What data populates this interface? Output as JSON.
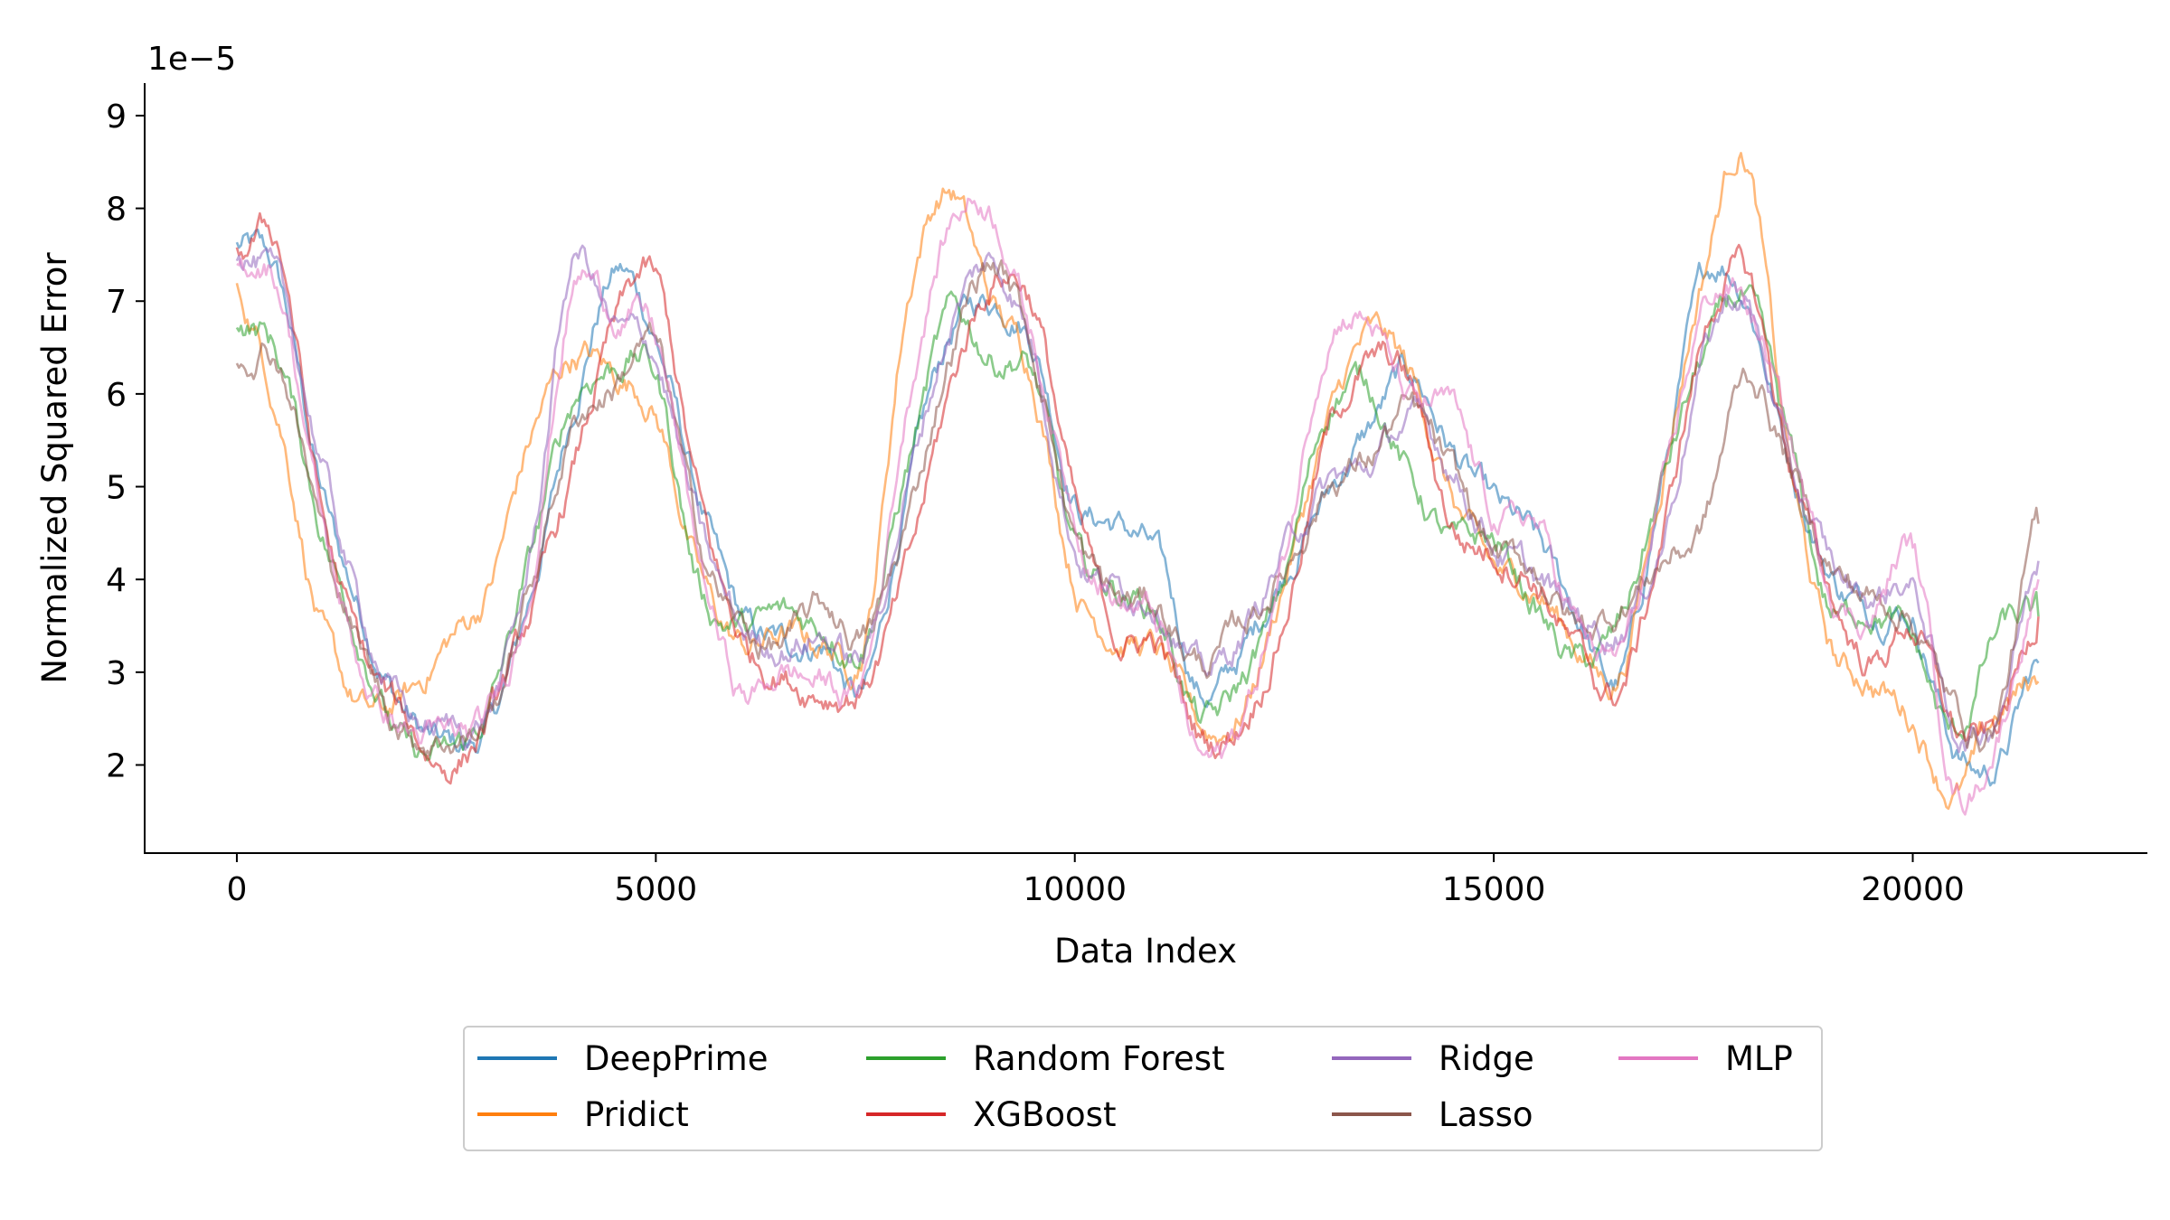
{
  "chart_data": {
    "type": "line",
    "xlabel": "Data Index",
    "ylabel": "Normalized Squared Error",
    "y_scale_label": "1e−5",
    "xlim": [
      -1100,
      22800
    ],
    "ylim": [
      1.05,
      9.35
    ],
    "x_ticks": [
      0,
      5000,
      10000,
      15000,
      20000
    ],
    "x_tick_labels": [
      "0",
      "5000",
      "10000",
      "15000",
      "20000"
    ],
    "y_ticks": [
      2,
      3,
      4,
      5,
      6,
      7,
      8,
      9
    ],
    "y_tick_labels": [
      "2",
      "3",
      "4",
      "5",
      "6",
      "7",
      "8",
      "9"
    ],
    "grid": false,
    "legend_position": "bottom-center",
    "x": [
      0,
      500,
      1000,
      1500,
      2000,
      2500,
      3000,
      3500,
      4000,
      4500,
      5000,
      5500,
      6000,
      6500,
      7000,
      7500,
      8000,
      8500,
      9000,
      9500,
      10000,
      10500,
      11000,
      11500,
      12000,
      12500,
      13000,
      13500,
      14000,
      14500,
      15000,
      15500,
      16000,
      16500,
      17000,
      17500,
      18000,
      18500,
      19000,
      19500,
      20000,
      20500,
      21000,
      21500
    ],
    "series": [
      {
        "name": "DeepPrime",
        "color": "#1f77b4",
        "values": [
          7.6,
          7.2,
          5.0,
          3.6,
          2.6,
          2.2,
          2.4,
          3.8,
          5.8,
          7.3,
          6.6,
          4.9,
          3.6,
          3.3,
          3.3,
          2.8,
          4.9,
          6.6,
          7.0,
          6.6,
          4.9,
          4.6,
          4.2,
          2.8,
          3.2,
          4.1,
          4.9,
          5.6,
          6.2,
          5.4,
          4.8,
          4.4,
          3.6,
          2.9,
          5.0,
          7.2,
          7.1,
          5.4,
          4.1,
          3.7,
          3.6,
          2.2,
          2.0,
          3.1
        ]
      },
      {
        "name": "Pridict",
        "color": "#ff7f0e",
        "values": [
          7.1,
          5.8,
          3.5,
          2.6,
          2.7,
          3.3,
          3.9,
          5.5,
          6.4,
          6.2,
          5.8,
          4.1,
          3.3,
          3.4,
          3.3,
          3.4,
          7.0,
          8.2,
          7.0,
          6.2,
          4.0,
          3.4,
          3.2,
          2.4,
          2.6,
          4.0,
          5.6,
          6.6,
          6.2,
          4.9,
          4.1,
          3.9,
          3.3,
          3.0,
          5.1,
          7.3,
          8.6,
          5.4,
          3.3,
          2.9,
          2.5,
          1.7,
          2.5,
          2.9
        ]
      },
      {
        "name": "Random Forest",
        "color": "#2ca02c",
        "values": [
          6.8,
          6.4,
          4.6,
          3.3,
          2.2,
          2.1,
          2.6,
          4.2,
          5.9,
          6.3,
          6.2,
          4.0,
          3.5,
          3.6,
          3.5,
          3.4,
          5.2,
          6.8,
          6.4,
          6.2,
          4.3,
          3.9,
          3.6,
          2.5,
          2.9,
          4.0,
          5.8,
          6.1,
          5.1,
          4.4,
          4.4,
          3.7,
          3.1,
          3.5,
          5.0,
          6.4,
          7.0,
          5.5,
          3.7,
          3.7,
          3.3,
          2.3,
          3.4,
          3.6
        ]
      },
      {
        "name": "XGBoost",
        "color": "#d62728",
        "values": [
          7.5,
          7.6,
          4.8,
          3.2,
          2.5,
          2.0,
          2.5,
          3.6,
          5.1,
          6.7,
          7.2,
          4.9,
          3.4,
          3.0,
          2.8,
          2.9,
          4.1,
          6.0,
          7.2,
          7.0,
          4.8,
          3.4,
          3.3,
          2.3,
          2.5,
          3.6,
          5.5,
          6.3,
          6.1,
          4.6,
          4.3,
          4.0,
          3.2,
          2.8,
          4.4,
          6.6,
          7.3,
          5.4,
          3.9,
          3.1,
          3.5,
          2.4,
          2.4,
          3.6
        ]
      },
      {
        "name": "Ridge",
        "color": "#9467bd",
        "values": [
          7.5,
          7.1,
          5.3,
          3.6,
          2.6,
          2.4,
          2.6,
          4.2,
          7.4,
          6.7,
          6.4,
          4.6,
          3.5,
          3.3,
          3.4,
          3.2,
          5.0,
          6.7,
          7.4,
          6.5,
          4.4,
          3.9,
          3.8,
          3.0,
          3.4,
          4.3,
          5.0,
          5.2,
          5.7,
          5.2,
          4.4,
          4.0,
          3.6,
          3.5,
          4.4,
          6.4,
          7.0,
          5.3,
          4.2,
          3.8,
          3.9,
          2.4,
          2.6,
          4.2
        ]
      },
      {
        "name": "Lasso",
        "color": "#8c564b",
        "values": [
          6.4,
          6.4,
          4.6,
          3.2,
          2.4,
          2.3,
          2.5,
          3.9,
          5.6,
          6.1,
          6.5,
          4.5,
          3.5,
          3.3,
          3.7,
          3.4,
          4.6,
          6.4,
          7.4,
          6.5,
          4.5,
          3.8,
          3.7,
          3.1,
          3.5,
          4.1,
          5.0,
          5.3,
          5.8,
          5.1,
          4.3,
          4.1,
          3.5,
          3.7,
          4.2,
          4.6,
          6.2,
          5.3,
          4.2,
          3.8,
          3.6,
          2.6,
          2.5,
          4.6
        ]
      },
      {
        "name": "MLP",
        "color": "#e377c2",
        "values": [
          7.4,
          7.2,
          4.7,
          3.0,
          2.4,
          2.3,
          2.5,
          4.0,
          7.1,
          6.9,
          6.6,
          4.3,
          2.8,
          3.0,
          2.9,
          3.0,
          5.9,
          7.8,
          8.0,
          6.6,
          4.7,
          3.8,
          3.5,
          2.1,
          2.5,
          4.2,
          6.6,
          6.8,
          5.9,
          5.8,
          4.7,
          4.6,
          3.5,
          3.2,
          4.8,
          6.9,
          7.0,
          5.6,
          4.0,
          3.6,
          4.3,
          1.8,
          2.3,
          4.0
        ]
      }
    ]
  }
}
